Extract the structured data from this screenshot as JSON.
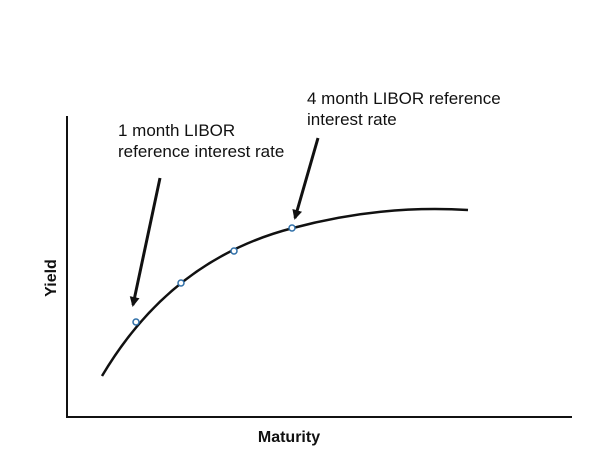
{
  "diagram": {
    "x_axis_label": "Maturity",
    "y_axis_label": "Yield",
    "annotations": [
      {
        "line1": "1 month LIBOR",
        "line2": "reference interest rate"
      },
      {
        "line1": "4 month LIBOR reference",
        "line2": "interest rate"
      }
    ],
    "curve_points": 4,
    "colors": {
      "line": "#111111",
      "marker_stroke": "#2f6fa8",
      "marker_fill": "#ffffff",
      "background": "#ffffff"
    }
  }
}
